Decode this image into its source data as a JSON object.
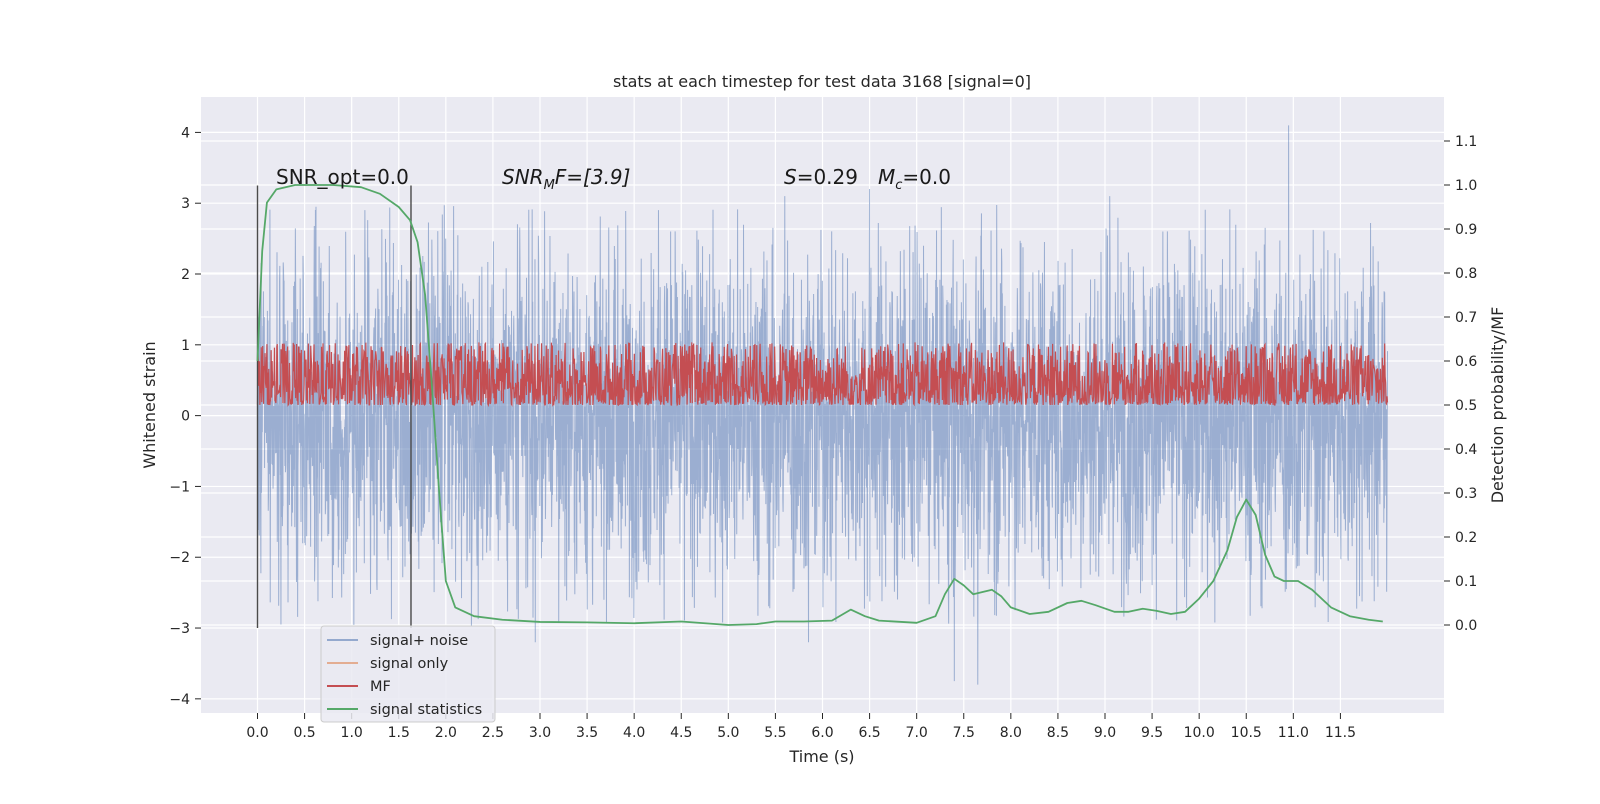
{
  "chart_data": {
    "type": "line",
    "title": "stats at each timestep for test data 3168 [signal=0]",
    "xlabel": "Time (s)",
    "ylabel_left": "Whitened strain",
    "ylabel_right": "Detection probability/MF",
    "xlim": [
      -0.6,
      12.6
    ],
    "ylim_left": [
      -4.2,
      4.5
    ],
    "ylim_right": [
      -0.2,
      1.2
    ],
    "x_ticks": [
      0.0,
      0.5,
      1.0,
      1.5,
      2.0,
      2.5,
      3.0,
      3.5,
      4.0,
      4.5,
      5.0,
      5.5,
      6.0,
      6.5,
      7.0,
      7.5,
      8.0,
      8.5,
      9.0,
      9.5,
      10.0,
      10.5,
      11.0,
      11.5
    ],
    "x_tick_labels": [
      "0.0",
      "0.5",
      "1.0",
      "1.5",
      "2.0",
      "2.5",
      "3.0",
      "3.5",
      "4.0",
      "4.5",
      "5.0",
      "5.5",
      "6.0",
      "6.5",
      "7.0",
      "7.5",
      "8.0",
      "8.5",
      "9.0",
      "9.5",
      "10.0",
      "10.5",
      "11.0",
      "11.5"
    ],
    "y_left_ticks": [
      -4,
      -3,
      -2,
      -1,
      0,
      1,
      2,
      3,
      4
    ],
    "y_left_tick_labels": [
      "−4",
      "−3",
      "−2",
      "−1",
      "0",
      "1",
      "2",
      "3",
      "4"
    ],
    "y_right_ticks": [
      0.0,
      0.1,
      0.2,
      0.3,
      0.4,
      0.5,
      0.6,
      0.7,
      0.8,
      0.9,
      1.0,
      1.1
    ],
    "y_right_tick_labels": [
      "0.0",
      "0.1",
      "0.2",
      "0.3",
      "0.4",
      "0.5",
      "0.6",
      "0.7",
      "0.8",
      "0.9",
      "1.0",
      "1.1"
    ],
    "grid": true,
    "legend_placement": "lower-left",
    "legend": [
      {
        "name": "signal+ noise",
        "color": "#4c72b0"
      },
      {
        "name": "signal only",
        "color": "#dd8452"
      },
      {
        "name": "MF",
        "color": "#c44e52"
      },
      {
        "name": "signal statistics",
        "color": "#55a868"
      }
    ],
    "annotations": {
      "snr_opt": "SNR_opt=0.0",
      "snr_mf_prefix": "SNR",
      "snr_mf_sub": "M",
      "snr_mf_rest": "F=[3.9]",
      "s_label": "S",
      "s_value": "=0.29",
      "mc_label": "M",
      "mc_sub": "c",
      "mc_value": "=0.0"
    },
    "vertical_markers_s": [
      0.0,
      1.63
    ],
    "series": [
      {
        "name": "signal+ noise",
        "axis": "left",
        "color": "#4c72b0",
        "t_range": [
          0.0,
          12.0
        ],
        "amplitude_typical": 1.3,
        "max": 4.1,
        "min": -3.8,
        "notable_peaks": [
          [
            10.95,
            4.1
          ],
          [
            0.0,
            2.4
          ],
          [
            5.6,
            3.1
          ],
          [
            6.5,
            3.2
          ],
          [
            9.05,
            3.1
          ]
        ],
        "notable_troughs": [
          [
            7.4,
            -3.75
          ],
          [
            7.65,
            -3.8
          ],
          [
            2.95,
            -3.2
          ],
          [
            5.85,
            -3.2
          ],
          [
            0.25,
            -2.95
          ]
        ]
      },
      {
        "name": "MF",
        "axis": "right",
        "color": "#c44e52",
        "t_range": [
          0.0,
          12.0
        ],
        "typical_min": 0.5,
        "typical_max": 0.65,
        "max": 0.64
      },
      {
        "name": "signal statistics",
        "axis": "right",
        "color": "#55a868",
        "points": [
          [
            0.0,
            0.6
          ],
          [
            0.05,
            0.85
          ],
          [
            0.1,
            0.96
          ],
          [
            0.2,
            0.99
          ],
          [
            0.4,
            1.0
          ],
          [
            0.8,
            1.0
          ],
          [
            1.1,
            0.995
          ],
          [
            1.3,
            0.98
          ],
          [
            1.5,
            0.95
          ],
          [
            1.62,
            0.92
          ],
          [
            1.7,
            0.87
          ],
          [
            1.78,
            0.75
          ],
          [
            1.85,
            0.55
          ],
          [
            1.93,
            0.3
          ],
          [
            2.0,
            0.1
          ],
          [
            2.1,
            0.04
          ],
          [
            2.3,
            0.02
          ],
          [
            2.6,
            0.012
          ],
          [
            3.0,
            0.007
          ],
          [
            3.5,
            0.006
          ],
          [
            4.0,
            0.004
          ],
          [
            4.5,
            0.008
          ],
          [
            5.0,
            0.0
          ],
          [
            5.3,
            0.002
          ],
          [
            5.5,
            0.008
          ],
          [
            5.8,
            0.008
          ],
          [
            6.1,
            0.01
          ],
          [
            6.3,
            0.035
          ],
          [
            6.45,
            0.02
          ],
          [
            6.6,
            0.01
          ],
          [
            7.0,
            0.005
          ],
          [
            7.2,
            0.02
          ],
          [
            7.3,
            0.07
          ],
          [
            7.4,
            0.105
          ],
          [
            7.5,
            0.09
          ],
          [
            7.6,
            0.07
          ],
          [
            7.7,
            0.075
          ],
          [
            7.8,
            0.08
          ],
          [
            7.9,
            0.065
          ],
          [
            8.0,
            0.04
          ],
          [
            8.2,
            0.025
          ],
          [
            8.4,
            0.03
          ],
          [
            8.6,
            0.05
          ],
          [
            8.75,
            0.055
          ],
          [
            8.9,
            0.045
          ],
          [
            9.1,
            0.03
          ],
          [
            9.25,
            0.03
          ],
          [
            9.4,
            0.037
          ],
          [
            9.55,
            0.032
          ],
          [
            9.7,
            0.025
          ],
          [
            9.85,
            0.03
          ],
          [
            10.0,
            0.06
          ],
          [
            10.15,
            0.1
          ],
          [
            10.3,
            0.17
          ],
          [
            10.4,
            0.245
          ],
          [
            10.5,
            0.285
          ],
          [
            10.6,
            0.25
          ],
          [
            10.7,
            0.16
          ],
          [
            10.8,
            0.11
          ],
          [
            10.9,
            0.1
          ],
          [
            11.05,
            0.1
          ],
          [
            11.2,
            0.08
          ],
          [
            11.4,
            0.04
          ],
          [
            11.6,
            0.02
          ],
          [
            11.8,
            0.012
          ],
          [
            11.95,
            0.008
          ]
        ]
      }
    ]
  }
}
